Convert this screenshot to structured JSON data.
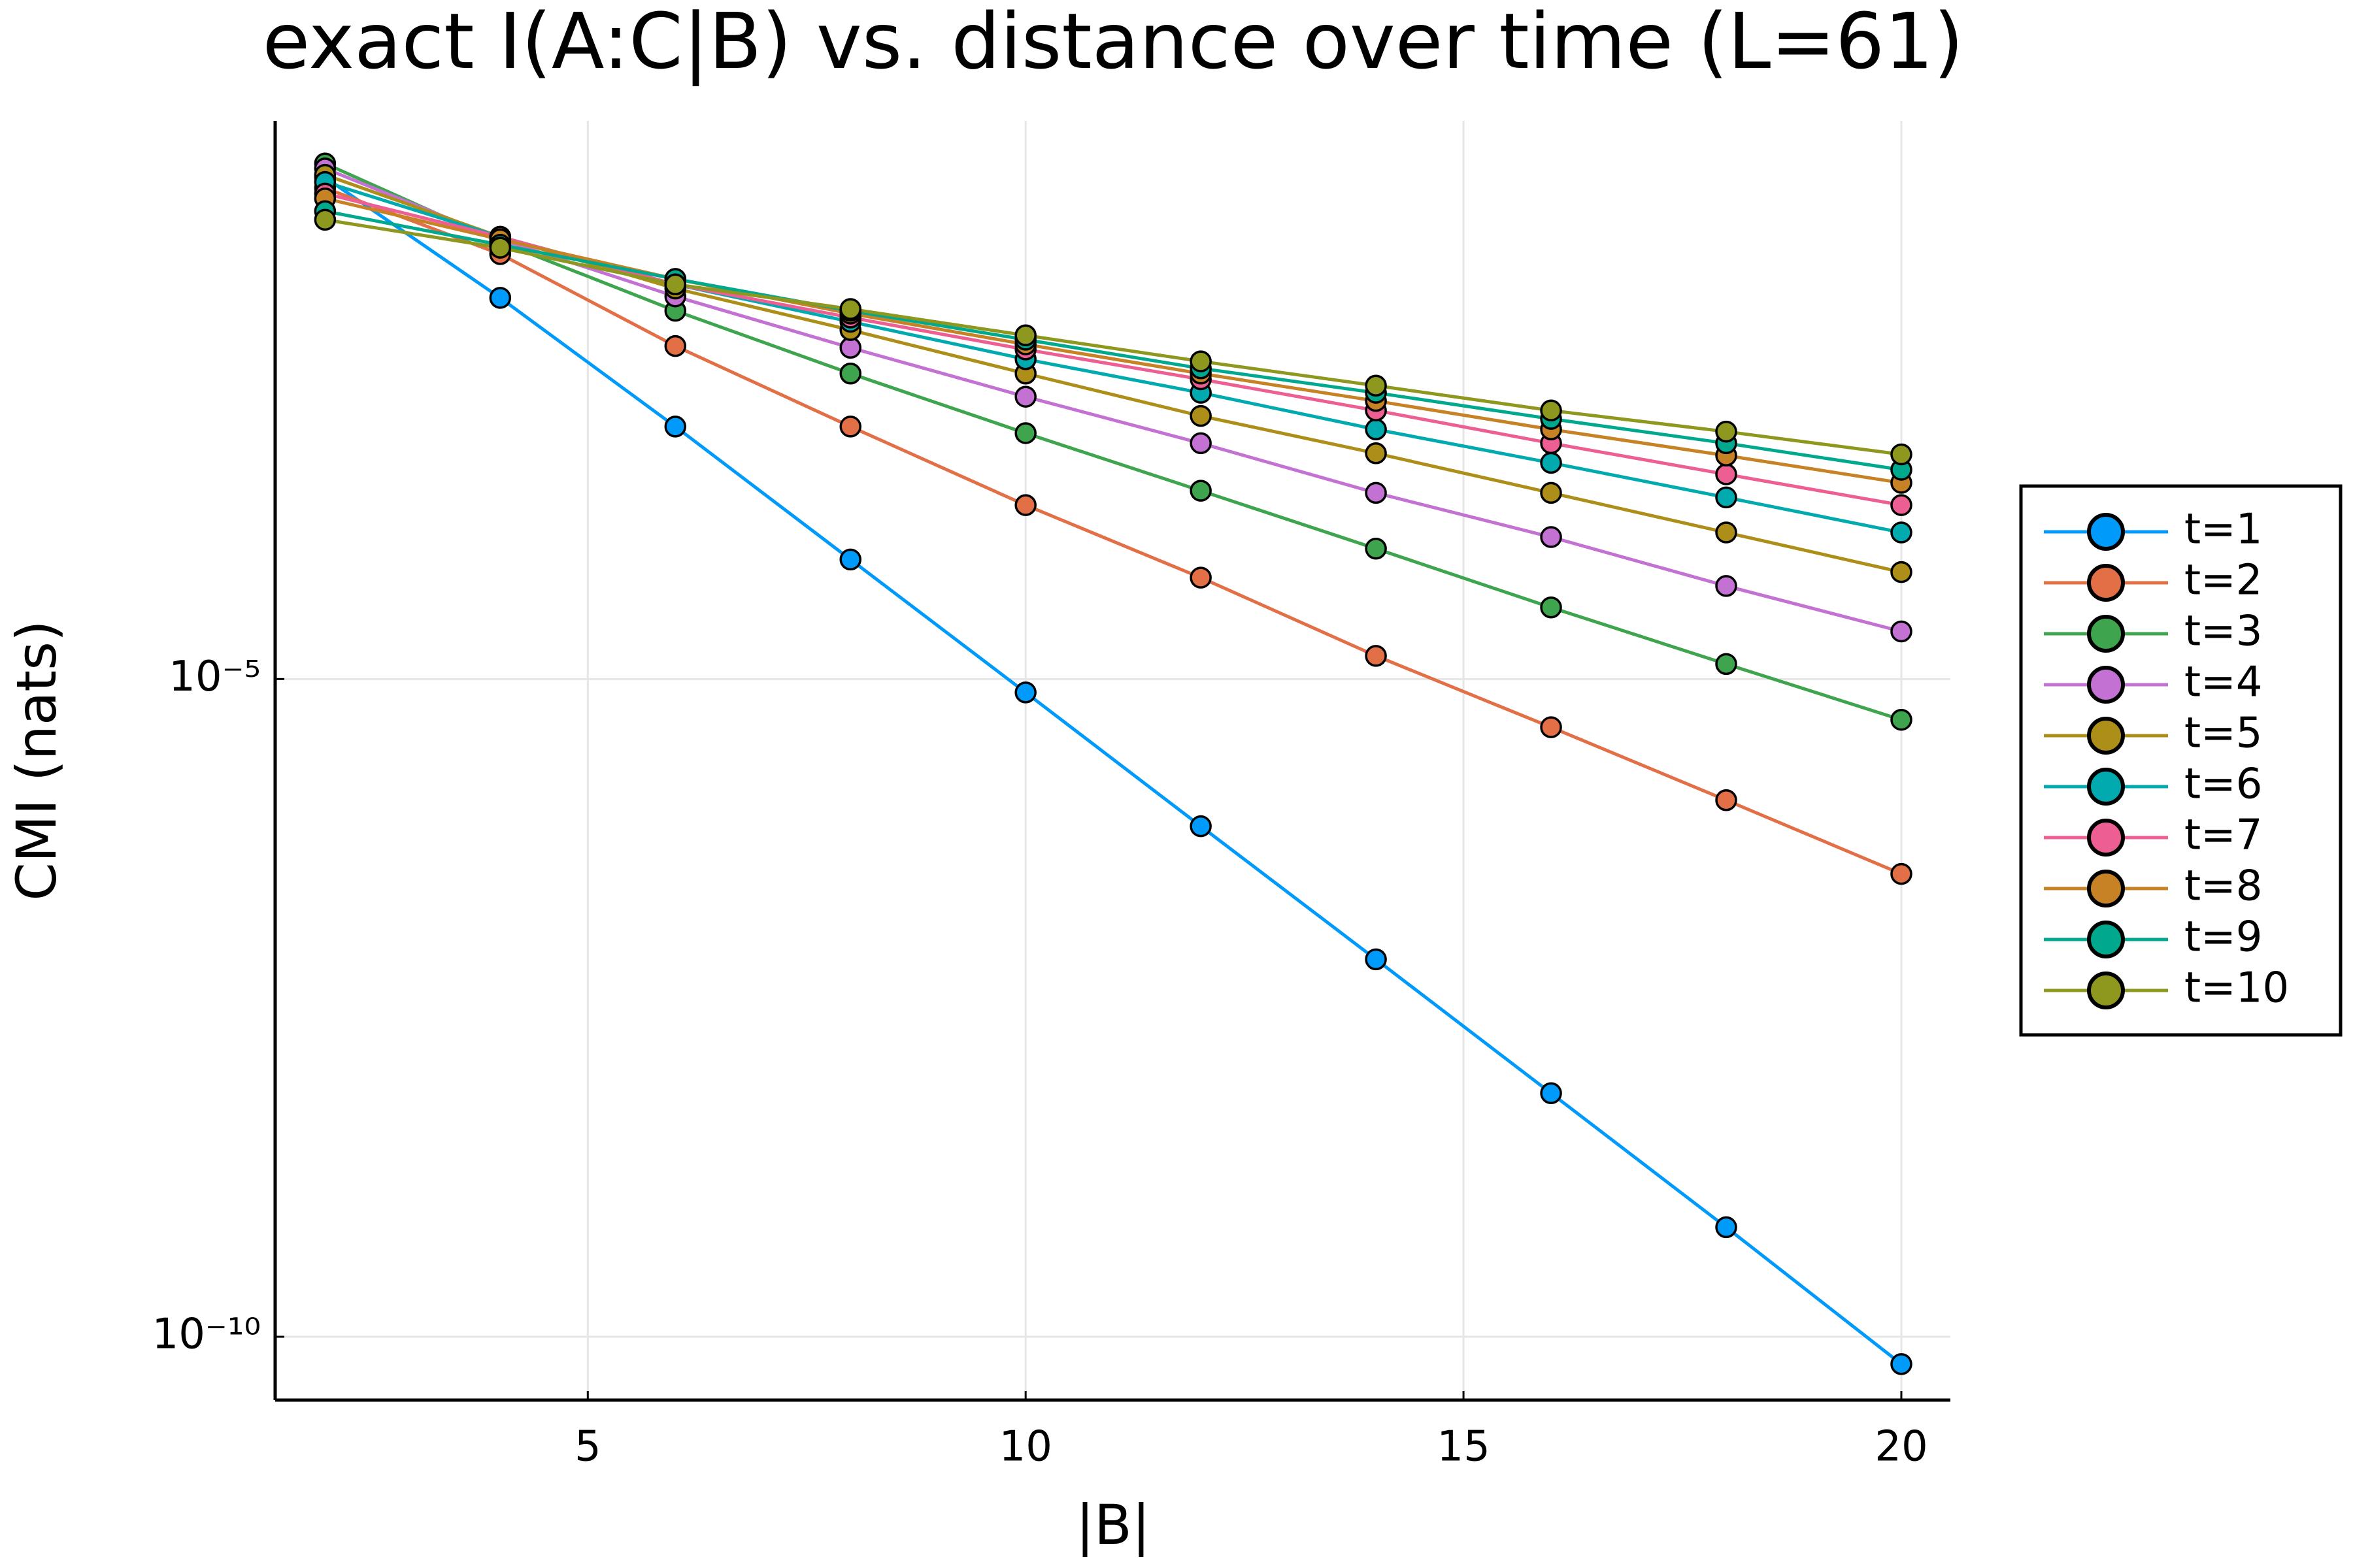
{
  "chart_data": {
    "type": "line",
    "title": "exact I(A:C|B) vs. distance over time (L=61)",
    "x_label": "|B|",
    "y_label": "CMI (nats)",
    "log_y": true,
    "grid": true,
    "legend": "right",
    "x": [
      2,
      4,
      6,
      8,
      10,
      12,
      14,
      16,
      18,
      20
    ],
    "xlim": [
      1.43,
      20.56
    ],
    "xticks": [
      5,
      10,
      15,
      20
    ],
    "ylim": [
      3.3e-11,
      0.175
    ],
    "yticks": [
      {
        "value": 1e-10,
        "label": "10⁻¹⁰"
      },
      {
        "value": 1e-05,
        "label": "10⁻⁵"
      }
    ],
    "series": [
      {
        "name": "t=1",
        "color": "#009AFA",
        "values": [
          0.065,
          0.0079,
          0.00083,
          8.1e-05,
          7.9e-06,
          7.6e-07,
          7.4e-08,
          7.1e-09,
          6.8e-10,
          6.2e-11
        ]
      },
      {
        "name": "t=2",
        "color": "#E36F47",
        "values": [
          0.054,
          0.017,
          0.0034,
          0.00083,
          0.00021,
          5.9e-05,
          1.5e-05,
          4.3e-06,
          1.2e-06,
          3.3e-07
        ]
      },
      {
        "name": "t=3",
        "color": "#3EA44E",
        "values": [
          0.083,
          0.021,
          0.0063,
          0.0021,
          0.00074,
          0.00027,
          9.8e-05,
          3.5e-05,
          1.3e-05,
          4.9e-06
        ]
      },
      {
        "name": "t=4",
        "color": "#C371D2",
        "values": [
          0.076,
          0.022,
          0.0081,
          0.0033,
          0.0014,
          0.00062,
          0.00026,
          0.00012,
          5.1e-05,
          2.3e-05
        ]
      },
      {
        "name": "t=5",
        "color": "#AC8E18",
        "values": [
          0.068,
          0.023,
          0.0093,
          0.0045,
          0.0021,
          0.001,
          0.00052,
          0.00026,
          0.00013,
          6.5e-05
        ]
      },
      {
        "name": "t=6",
        "color": "#00AAAE",
        "values": [
          0.06,
          0.023,
          0.01,
          0.0052,
          0.0027,
          0.0015,
          0.00079,
          0.00044,
          0.00024,
          0.00013
        ]
      },
      {
        "name": "t=7",
        "color": "#ED5E93",
        "values": [
          0.049,
          0.023,
          0.01,
          0.0056,
          0.0032,
          0.0019,
          0.0011,
          0.00062,
          0.00036,
          0.00021
        ]
      },
      {
        "name": "t=8",
        "color": "#C68225",
        "values": [
          0.045,
          0.022,
          0.011,
          0.006,
          0.0035,
          0.0021,
          0.0013,
          0.00079,
          0.0005,
          0.00031
        ]
      },
      {
        "name": "t=9",
        "color": "#00A98D",
        "values": [
          0.036,
          0.02,
          0.011,
          0.0063,
          0.0038,
          0.0023,
          0.0015,
          0.00095,
          0.00062,
          0.00039
        ]
      },
      {
        "name": "t=10",
        "color": "#8E971E",
        "values": [
          0.031,
          0.019,
          0.01,
          0.0065,
          0.0041,
          0.0026,
          0.0017,
          0.0011,
          0.00076,
          0.00051
        ]
      }
    ]
  }
}
